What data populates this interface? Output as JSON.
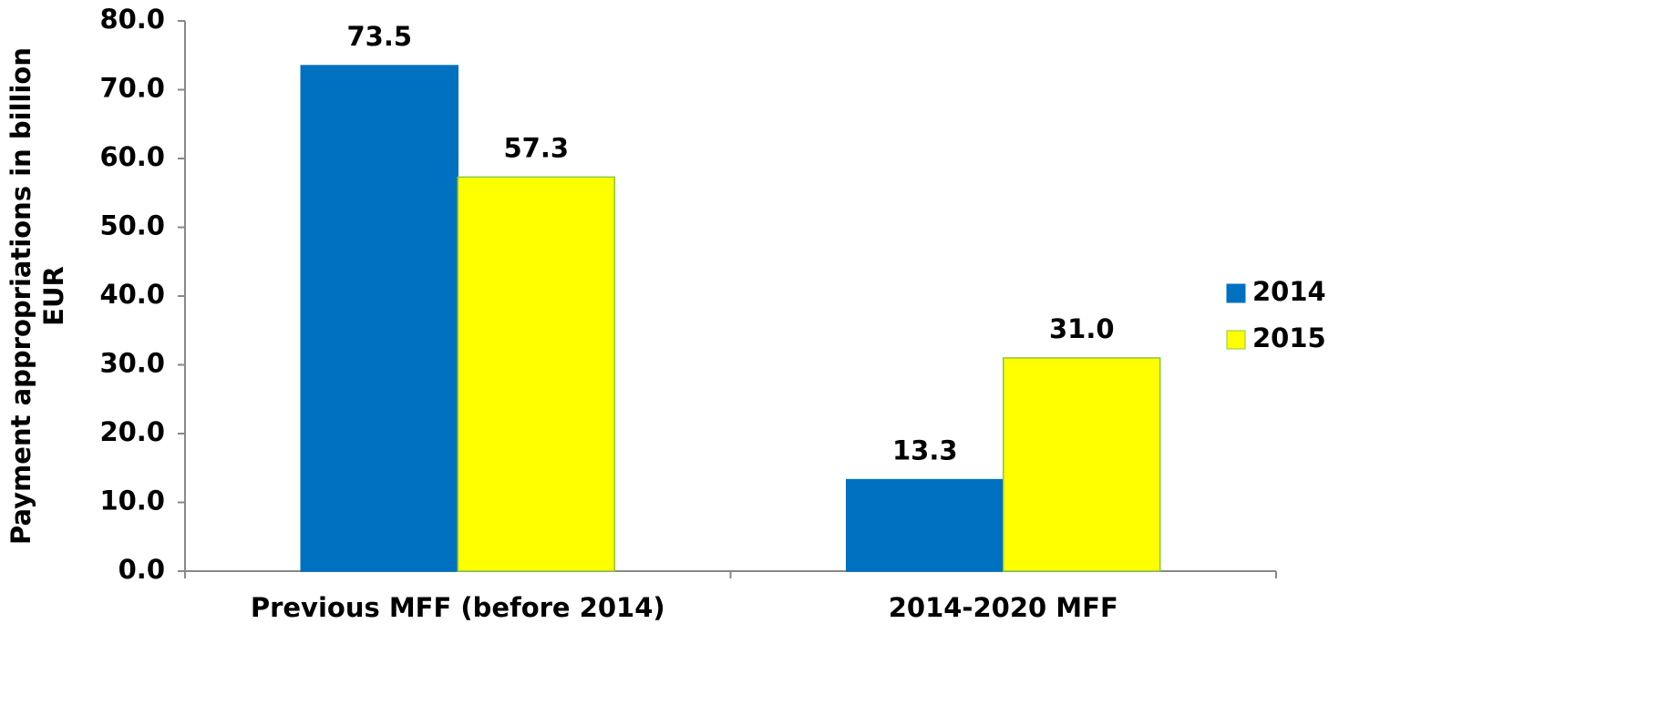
{
  "chart_data": {
    "type": "bar",
    "y_label": "Payment appropriations in billion EUR",
    "categories": [
      "Previous MFF (before 2014)",
      "2014-2020 MFF"
    ],
    "series": [
      {
        "name": "2014",
        "color": "#0070c0",
        "values": [
          73.5,
          13.3
        ],
        "value_labels": [
          "73.5",
          "13.3"
        ]
      },
      {
        "name": "2015",
        "color": "#ffff00",
        "values": [
          57.3,
          31.0
        ],
        "value_labels": [
          "57.3",
          "31.0"
        ]
      }
    ],
    "ylim": [
      0,
      80
    ],
    "yticks": [
      {
        "value": 0,
        "label": "0.0"
      },
      {
        "value": 10,
        "label": "10.0"
      },
      {
        "value": 20,
        "label": "20.0"
      },
      {
        "value": 30,
        "label": "30.0"
      },
      {
        "value": 40,
        "label": "40.0"
      },
      {
        "value": 50,
        "label": "50.0"
      },
      {
        "value": 60,
        "label": "60.0"
      },
      {
        "value": 70,
        "label": "70.0"
      },
      {
        "value": 80,
        "label": "80.0"
      }
    ],
    "legend": "right"
  }
}
